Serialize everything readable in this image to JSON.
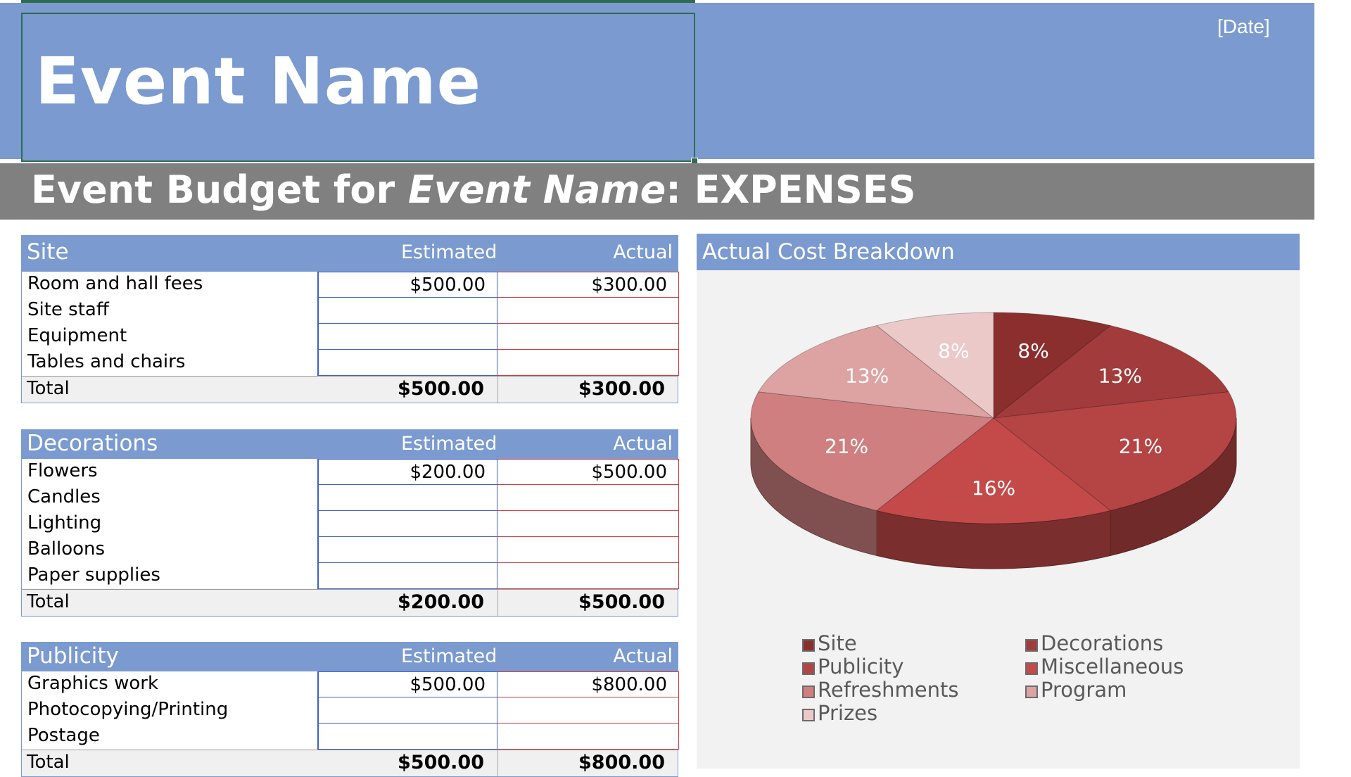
{
  "header": {
    "event_title": "Event Name",
    "date": "[Date]",
    "subtitle_prefix": "Event Budget for ",
    "subtitle_event": "Event Name",
    "subtitle_suffix": ": EXPENSES"
  },
  "tables": {
    "site": {
      "title": "Site",
      "est_label": "Estimated",
      "act_label": "Actual",
      "rows": [
        {
          "label": "Room and hall fees",
          "est": "$500.00",
          "act": "$300.00"
        },
        {
          "label": "Site staff",
          "est": "",
          "act": ""
        },
        {
          "label": "Equipment",
          "est": "",
          "act": ""
        },
        {
          "label": "Tables and chairs",
          "est": "",
          "act": ""
        }
      ],
      "total_label": "Total",
      "total_est": "$500.00",
      "total_act": "$300.00"
    },
    "decorations": {
      "title": "Decorations",
      "est_label": "Estimated",
      "act_label": "Actual",
      "rows": [
        {
          "label": "Flowers",
          "est": "$200.00",
          "act": "$500.00"
        },
        {
          "label": "Candles",
          "est": "",
          "act": ""
        },
        {
          "label": "Lighting",
          "est": "",
          "act": ""
        },
        {
          "label": "Balloons",
          "est": "",
          "act": ""
        },
        {
          "label": "Paper supplies",
          "est": "",
          "act": ""
        }
      ],
      "total_label": "Total",
      "total_est": "$200.00",
      "total_act": "$500.00"
    },
    "publicity": {
      "title": "Publicity",
      "est_label": "Estimated",
      "act_label": "Actual",
      "rows": [
        {
          "label": "Graphics work",
          "est": "$500.00",
          "act": "$800.00"
        },
        {
          "label": "Photocopying/Printing",
          "est": "",
          "act": ""
        },
        {
          "label": "Postage",
          "est": "",
          "act": ""
        }
      ],
      "total_label": "Total",
      "total_est": "$500.00",
      "total_act": "$800.00"
    }
  },
  "chart_data": {
    "type": "pie",
    "title": "Actual Cost Breakdown",
    "categories": [
      "Site",
      "Decorations",
      "Publicity",
      "Miscellaneous",
      "Refreshments",
      "Program",
      "Prizes"
    ],
    "values": [
      8,
      13,
      21,
      16,
      21,
      13,
      8
    ],
    "labels": [
      "8%",
      "13%",
      "21%",
      "16%",
      "21%",
      "13%",
      "8%"
    ],
    "colors": [
      "#8b2e2e",
      "#a23b3b",
      "#b54444",
      "#c44a4a",
      "#cf7f7f",
      "#dda3a3",
      "#ecc9c9"
    ],
    "legend": [
      "Site",
      "Decorations",
      "Publicity",
      "Miscellaneous",
      "Refreshments",
      "Program",
      "Prizes"
    ],
    "legend_position": "bottom"
  }
}
